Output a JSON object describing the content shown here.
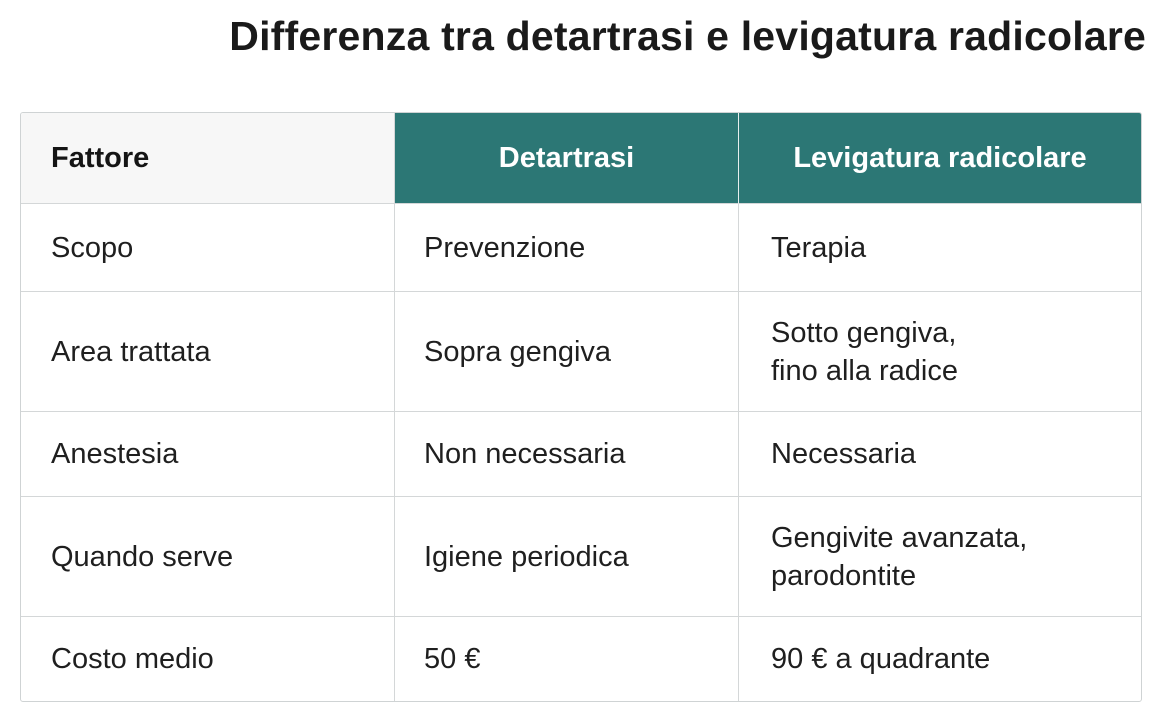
{
  "title": "Differenza tra detartrasi e levigatura radicolare",
  "colors": {
    "header_accent": "#2c7775",
    "header_first": "#f7f7f7",
    "border": "#d4d7d8"
  },
  "table": {
    "headers": [
      "Fattore",
      "Detartrasi",
      "Levigatura radicolare"
    ],
    "rows": [
      [
        "Scopo",
        "Prevenzione",
        "Terapia"
      ],
      [
        "Area trattata",
        "Sopra gengiva",
        "Sotto gengiva,\nfino alla radice"
      ],
      [
        "Anestesia",
        "Non necessaria",
        "Necessaria"
      ],
      [
        "Quando serve",
        "Igiene periodica",
        "Gengivite avanzata,\nparodontite"
      ],
      [
        "Costo medio",
        "50 €",
        "90 € a quadrante"
      ]
    ]
  }
}
